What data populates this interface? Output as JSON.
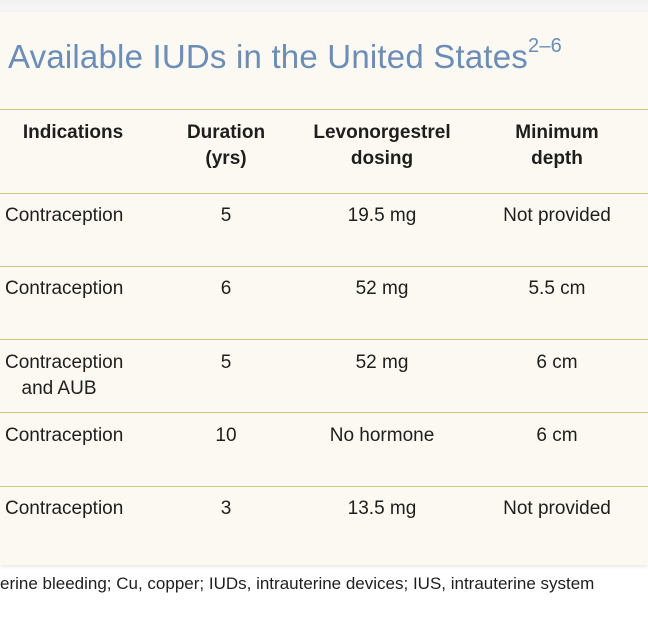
{
  "title": {
    "text": "Available IUDs in the United States",
    "superscript": "2–6"
  },
  "table": {
    "headers": {
      "indications": "Indications",
      "duration_line1": "Duration",
      "duration_line2": "(yrs)",
      "dosing_line1": "Levonorgestrel",
      "dosing_line2": "dosing",
      "depth_line1": "Minimum",
      "depth_line2": "depth"
    },
    "rows": [
      {
        "indication_line1": "Contraception",
        "indication_line2": "",
        "duration": "5",
        "dosing": "19.5 mg",
        "depth": "Not provided"
      },
      {
        "indication_line1": "Contraception",
        "indication_line2": "",
        "duration": "6",
        "dosing": "52 mg",
        "depth": "5.5 cm"
      },
      {
        "indication_line1": "Contraception",
        "indication_line2": "and AUB",
        "duration": "5",
        "dosing": "52 mg",
        "depth": "6 cm"
      },
      {
        "indication_line1": "Contraception",
        "indication_line2": "",
        "duration": "10",
        "dosing": "No hormone",
        "depth": "6 cm"
      },
      {
        "indication_line1": "Contraception",
        "indication_line2": "",
        "duration": "3",
        "dosing": "13.5 mg",
        "depth": "Not provided"
      }
    ]
  },
  "footnote": "erine bleeding; Cu, copper; IUDs, intrauterine devices; IUS, intrauterine system"
}
